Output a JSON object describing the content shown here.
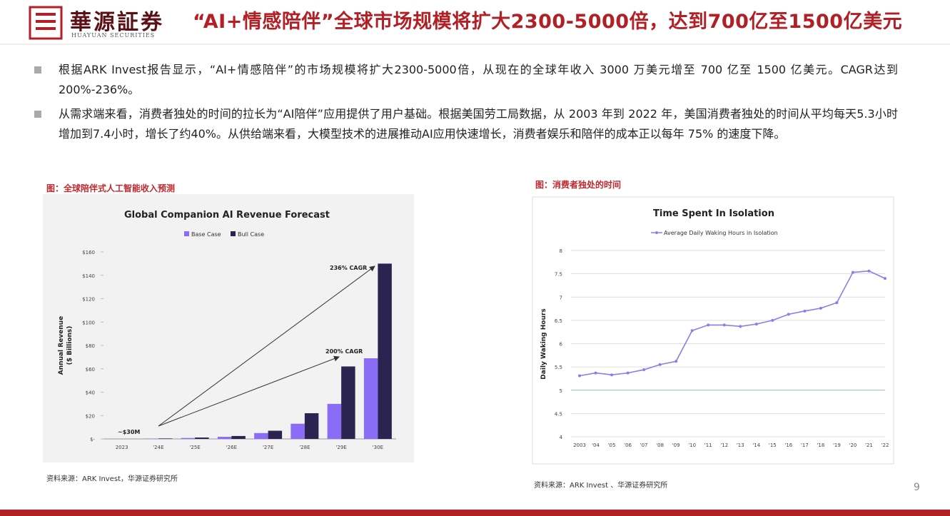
{
  "header": {
    "logo": "華源証券",
    "logo_en": "HUAYUAN SECURITIES",
    "title": "“AI+情感陪伴”全球市场规模将扩大2300-5000倍，达到700亿至1500亿美元"
  },
  "bullets": [
    "根据ARK Invest报告显示，“AI+情感陪伴”的市场规模将扩大2300-5000倍，从现在的全球年收入 3000 万美元增至 700 亿至 1500 亿美元。CAGR达到200%-236%。",
    "从需求端来看，消费者独处的时间的拉长为“AI陪伴”应用提供了用户基础。根据美国劳工局数据，从 2003 年到 2022 年，美国消费者独处的时间从平均每天5.3小时增加到7.4小时，增长了约40%。从供给端来看，大模型技术的进展推动AI应用快速增长，消费者娱乐和陪伴的成本正以每年 75% 的速度下降。"
  ],
  "captions": [
    "图：全球陪伴式人工智能收入预测",
    "图：消费者独处的时间"
  ],
  "sources": [
    "资料来源：ARK Invest，华源证券研究所",
    "资料来源：ARK Invest 、华源证券研究所"
  ],
  "page_number": "9",
  "chart_data": [
    {
      "type": "bar",
      "title": "Global Companion AI Revenue Forecast",
      "y_label": [
        "Annual Revenue",
        "($ Billions)"
      ],
      "categories": [
        "2023",
        "'24E",
        "'25E",
        "'26E",
        "'27E",
        "'28E",
        "'29E",
        "'30E"
      ],
      "series": [
        {
          "name": "Base Case",
          "color": "#8b6cf7",
          "values": [
            0.03,
            0.3,
            0.8,
            1.8,
            5,
            13,
            30,
            69
          ]
        },
        {
          "name": "Bull Case",
          "color": "#2b2350",
          "values": [
            0.03,
            0.4,
            1.2,
            2.5,
            7,
            22,
            62,
            150
          ]
        }
      ],
      "ylim": [
        0,
        160
      ],
      "yticks": [
        {
          "value": 0,
          "label": "$-"
        },
        {
          "value": 20,
          "label": "$20"
        },
        {
          "value": 40,
          "label": "$40"
        },
        {
          "value": 60,
          "label": "$60"
        },
        {
          "value": 80,
          "label": "$80"
        },
        {
          "value": 100,
          "label": "$100"
        },
        {
          "value": 120,
          "label": "$120"
        },
        {
          "value": 140,
          "label": "$140"
        },
        {
          "value": 160,
          "label": "$160"
        }
      ],
      "annotations": [
        "~$30M",
        "236% CAGR",
        "200% CAGR"
      ]
    },
    {
      "type": "line",
      "title": "Time Spent In Isolation",
      "y_label": "Daily Waking Hours",
      "categories": [
        "2003",
        "'04",
        "'05",
        "'06",
        "'07",
        "'08",
        "'09",
        "'10",
        "'11",
        "'12",
        "'13",
        "'14",
        "'15",
        "'16",
        "'17",
        "'18",
        "'19",
        "'20",
        "'21",
        "'22"
      ],
      "series": [
        {
          "name": "Average Daily Waking Hours in Isolation",
          "color": "#8b7cf0",
          "values": [
            5.31,
            5.37,
            5.33,
            5.37,
            5.44,
            5.55,
            5.62,
            6.28,
            6.4,
            6.4,
            6.37,
            6.42,
            6.5,
            6.63,
            6.7,
            6.76,
            6.88,
            7.53,
            7.56,
            7.4
          ]
        }
      ],
      "ylim": [
        4,
        8
      ],
      "yticks": [
        4,
        4.5,
        5,
        5.5,
        6,
        6.5,
        7,
        7.5,
        8
      ],
      "grid": true
    }
  ]
}
